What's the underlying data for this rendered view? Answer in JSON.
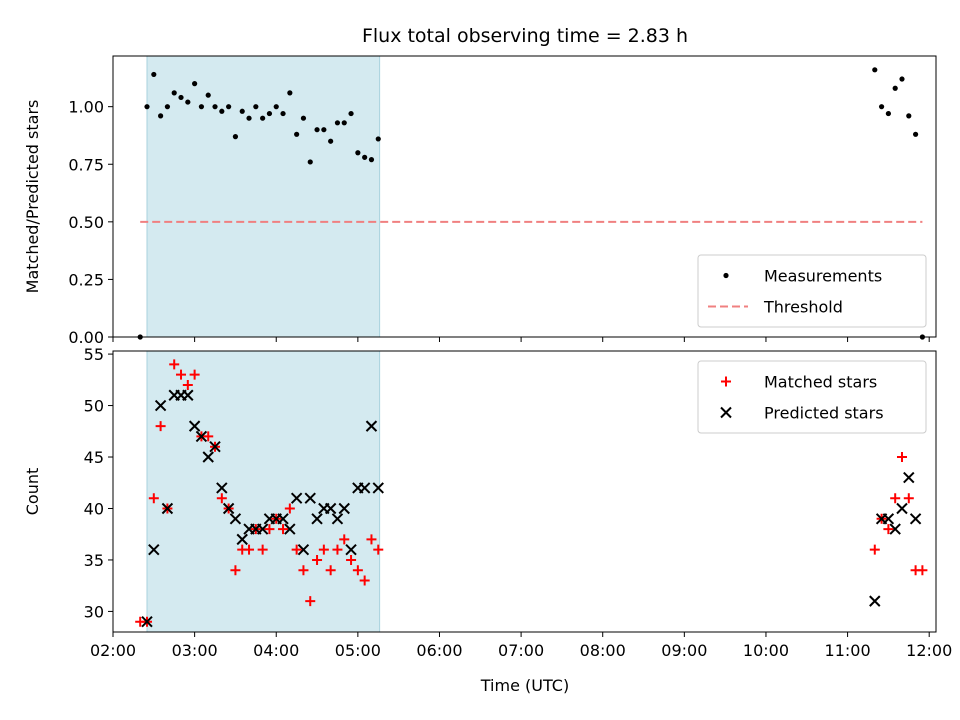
{
  "chart_data": {
    "type": "scatter",
    "title": "Flux total observing time = 2.83 h",
    "xlabel": "Time (UTC)",
    "x_ticks": [
      "02:00",
      "03:00",
      "04:00",
      "05:00",
      "06:00",
      "07:00",
      "08:00",
      "09:00",
      "10:00",
      "11:00",
      "12:00"
    ],
    "shaded_interval": {
      "start": "02:25",
      "end": "05:16",
      "color": "#d4eaf0"
    },
    "panels": [
      {
        "ylabel": "Matched/Predicted stars",
        "ylim": [
          0,
          1.22
        ],
        "y_ticks": [
          "0.00",
          "0.25",
          "0.50",
          "0.75",
          "1.00"
        ],
        "legend_position": "lower-right",
        "threshold": {
          "name": "Threshold",
          "value": 0.5,
          "start": "02:20",
          "end": "11:55",
          "color": "#f08080"
        },
        "series": [
          {
            "name": "Measurements",
            "marker": "dot",
            "color": "#000000",
            "points": [
              [
                "02:20",
                0.0
              ],
              [
                "02:25",
                1.0
              ],
              [
                "02:30",
                1.14
              ],
              [
                "02:35",
                0.96
              ],
              [
                "02:40",
                1.0
              ],
              [
                "02:45",
                1.06
              ],
              [
                "02:50",
                1.04
              ],
              [
                "02:55",
                1.02
              ],
              [
                "03:00",
                1.1
              ],
              [
                "03:05",
                1.0
              ],
              [
                "03:10",
                1.05
              ],
              [
                "03:15",
                1.0
              ],
              [
                "03:20",
                0.98
              ],
              [
                "03:25",
                1.0
              ],
              [
                "03:30",
                0.87
              ],
              [
                "03:35",
                0.98
              ],
              [
                "03:40",
                0.95
              ],
              [
                "03:45",
                1.0
              ],
              [
                "03:50",
                0.95
              ],
              [
                "03:55",
                0.97
              ],
              [
                "04:00",
                1.0
              ],
              [
                "04:05",
                0.97
              ],
              [
                "04:10",
                1.06
              ],
              [
                "04:15",
                0.88
              ],
              [
                "04:20",
                0.95
              ],
              [
                "04:25",
                0.76
              ],
              [
                "04:30",
                0.9
              ],
              [
                "04:35",
                0.9
              ],
              [
                "04:40",
                0.85
              ],
              [
                "04:45",
                0.93
              ],
              [
                "04:50",
                0.93
              ],
              [
                "04:55",
                0.97
              ],
              [
                "05:00",
                0.8
              ],
              [
                "05:05",
                0.78
              ],
              [
                "05:10",
                0.77
              ],
              [
                "05:15",
                0.86
              ],
              [
                "11:20",
                1.16
              ],
              [
                "11:25",
                1.0
              ],
              [
                "11:30",
                0.97
              ],
              [
                "11:35",
                1.08
              ],
              [
                "11:40",
                1.12
              ],
              [
                "11:45",
                0.96
              ],
              [
                "11:50",
                0.88
              ],
              [
                "11:55",
                0.0
              ]
            ]
          }
        ]
      },
      {
        "ylabel": "Count",
        "ylim": [
          28,
          55.3
        ],
        "y_ticks": [
          "30",
          "35",
          "40",
          "45",
          "50",
          "55"
        ],
        "legend_position": "upper-right",
        "series": [
          {
            "name": "Matched stars",
            "marker": "plus",
            "color": "#ff0000",
            "points": [
              [
                "02:20",
                29
              ],
              [
                "02:25",
                29
              ],
              [
                "02:30",
                41
              ],
              [
                "02:35",
                48
              ],
              [
                "02:40",
                40
              ],
              [
                "02:45",
                54
              ],
              [
                "02:50",
                53
              ],
              [
                "02:55",
                52
              ],
              [
                "03:00",
                53
              ],
              [
                "03:05",
                47
              ],
              [
                "03:10",
                47
              ],
              [
                "03:15",
                46
              ],
              [
                "03:20",
                41
              ],
              [
                "03:25",
                40
              ],
              [
                "03:30",
                34
              ],
              [
                "03:35",
                36
              ],
              [
                "03:40",
                36
              ],
              [
                "03:45",
                38
              ],
              [
                "03:50",
                36
              ],
              [
                "03:55",
                38
              ],
              [
                "04:00",
                39
              ],
              [
                "04:05",
                38
              ],
              [
                "04:10",
                40
              ],
              [
                "04:15",
                36
              ],
              [
                "04:20",
                34
              ],
              [
                "04:25",
                31
              ],
              [
                "04:30",
                35
              ],
              [
                "04:35",
                36
              ],
              [
                "04:40",
                34
              ],
              [
                "04:45",
                36
              ],
              [
                "04:50",
                37
              ],
              [
                "04:55",
                35
              ],
              [
                "05:00",
                34
              ],
              [
                "05:05",
                33
              ],
              [
                "05:10",
                37
              ],
              [
                "05:15",
                36
              ],
              [
                "11:20",
                36
              ],
              [
                "11:25",
                39
              ],
              [
                "11:30",
                38
              ],
              [
                "11:35",
                41
              ],
              [
                "11:40",
                45
              ],
              [
                "11:45",
                41
              ],
              [
                "11:50",
                34
              ],
              [
                "11:55",
                34
              ]
            ]
          },
          {
            "name": "Predicted stars",
            "marker": "x",
            "color": "#000000",
            "points": [
              [
                "02:25",
                29
              ],
              [
                "02:30",
                36
              ],
              [
                "02:35",
                50
              ],
              [
                "02:40",
                40
              ],
              [
                "02:45",
                51
              ],
              [
                "02:50",
                51
              ],
              [
                "02:55",
                51
              ],
              [
                "03:00",
                48
              ],
              [
                "03:05",
                47
              ],
              [
                "03:10",
                45
              ],
              [
                "03:15",
                46
              ],
              [
                "03:20",
                42
              ],
              [
                "03:25",
                40
              ],
              [
                "03:30",
                39
              ],
              [
                "03:35",
                37
              ],
              [
                "03:40",
                38
              ],
              [
                "03:45",
                38
              ],
              [
                "03:50",
                38
              ],
              [
                "03:55",
                39
              ],
              [
                "04:00",
                39
              ],
              [
                "04:05",
                39
              ],
              [
                "04:10",
                38
              ],
              [
                "04:15",
                41
              ],
              [
                "04:20",
                36
              ],
              [
                "04:25",
                41
              ],
              [
                "04:30",
                39
              ],
              [
                "04:35",
                40
              ],
              [
                "04:40",
                40
              ],
              [
                "04:45",
                39
              ],
              [
                "04:50",
                40
              ],
              [
                "04:55",
                36
              ],
              [
                "05:00",
                42
              ],
              [
                "05:05",
                42
              ],
              [
                "05:10",
                48
              ],
              [
                "05:15",
                42
              ],
              [
                "11:20",
                31
              ],
              [
                "11:25",
                39
              ],
              [
                "11:30",
                39
              ],
              [
                "11:35",
                38
              ],
              [
                "11:40",
                40
              ],
              [
                "11:45",
                43
              ],
              [
                "11:50",
                39
              ]
            ]
          }
        ]
      }
    ]
  }
}
